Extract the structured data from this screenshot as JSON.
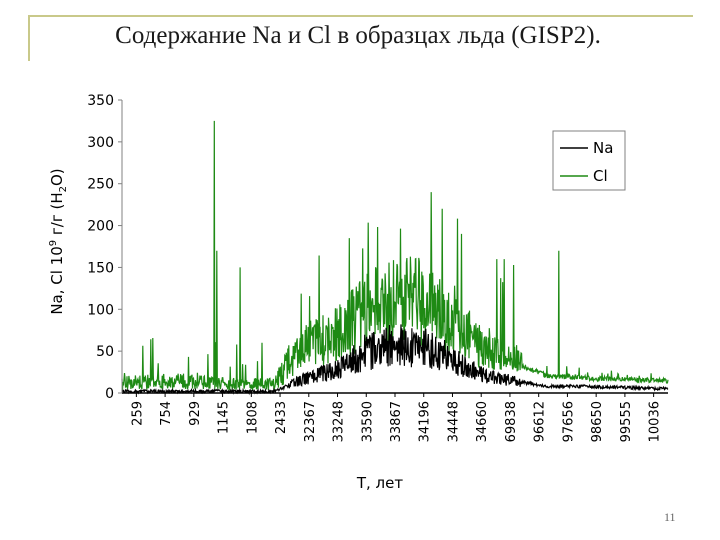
{
  "slide": {
    "title": "Содержание Na и Cl в образцах льда (GISP2).",
    "page_number": "11"
  },
  "chart_data": {
    "type": "line",
    "xlabel": "T, лет",
    "ylabel_parts": {
      "a": "Na, Cl 10",
      "sup": "9",
      "b": " г/г (H",
      "sub": "2",
      "c": "O)"
    },
    "ylim": [
      0,
      350
    ],
    "yticks": [
      0,
      50,
      100,
      150,
      200,
      250,
      300,
      350
    ],
    "categories": [
      "259",
      "754",
      "929",
      "1145",
      "1808",
      "2433",
      "32367",
      "33248",
      "33590",
      "33867",
      "34196",
      "34448",
      "34660",
      "69838",
      "96612",
      "97656",
      "98650",
      "99555",
      "10036"
    ],
    "grid": false,
    "legend_position": "top-right",
    "series": [
      {
        "name": "Na",
        "color": "#000000"
      },
      {
        "name": "Cl",
        "color": "#1e8a14"
      }
    ],
    "profile_per_category": {
      "Na_base": [
        2,
        2,
        2,
        2,
        2,
        2,
        17,
        27,
        48,
        58,
        54,
        38,
        20,
        14,
        8,
        8,
        7,
        6,
        5
      ],
      "Cl_base": [
        10,
        12,
        12,
        10,
        9,
        9,
        50,
        60,
        88,
        100,
        98,
        68,
        45,
        35,
        20,
        18,
        16,
        15,
        14
      ]
    },
    "spikes": [
      {
        "series": "Cl",
        "x_index": 3.05,
        "value": 325
      },
      {
        "series": "Cl",
        "x_index": 3.12,
        "value": 170
      },
      {
        "series": "Cl",
        "x_index": 3.9,
        "value": 150
      },
      {
        "series": "Cl",
        "x_index": 7.5,
        "value": 185
      },
      {
        "series": "Cl",
        "x_index": 10.2,
        "value": 240
      },
      {
        "series": "Cl",
        "x_index": 10.55,
        "value": 220
      },
      {
        "series": "Cl",
        "x_index": 11.2,
        "value": 190
      },
      {
        "series": "Cl",
        "x_index": 12.6,
        "value": 160
      },
      {
        "series": "Cl",
        "x_index": 14.4,
        "value": 170
      }
    ]
  }
}
